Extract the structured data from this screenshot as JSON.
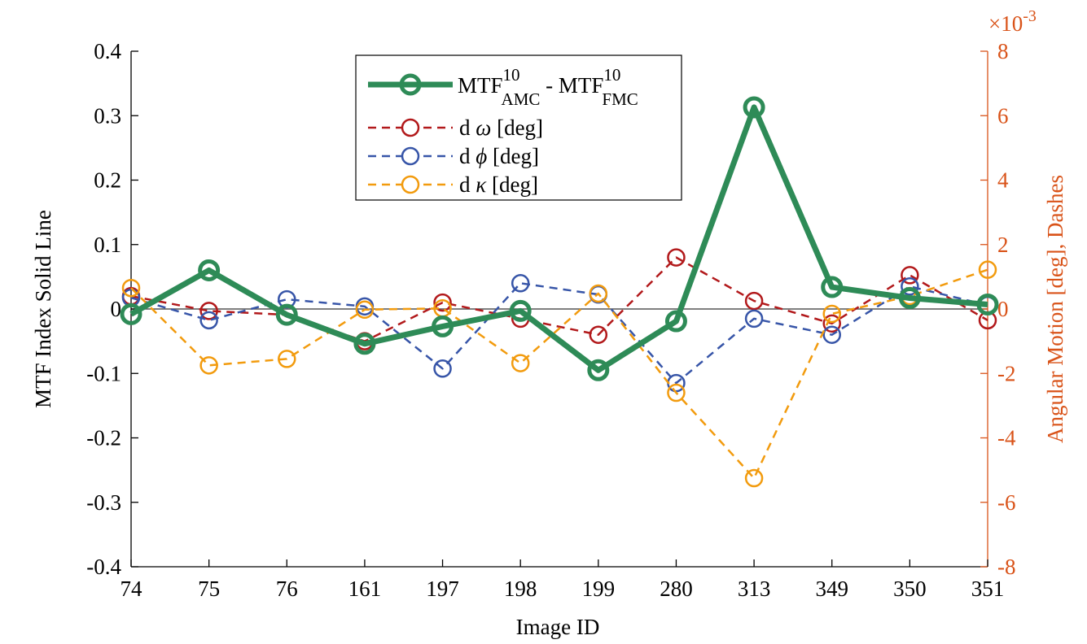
{
  "chart_data": {
    "type": "line",
    "categories": [
      "74",
      "75",
      "76",
      "161",
      "197",
      "198",
      "199",
      "280",
      "313",
      "349",
      "350",
      "351"
    ],
    "xlabel": "Image ID",
    "ylabel_left": "MTF Index Solid Line",
    "ylabel_right": "Angular Motion [deg], Dashes",
    "ylim_left": [
      -0.4,
      0.4
    ],
    "yticks_left": [
      "-0.4",
      "-0.3",
      "-0.2",
      "-0.1",
      "0",
      "0.1",
      "0.2",
      "0.3",
      "0.4"
    ],
    "ylim_right": [
      -8,
      8
    ],
    "yticks_right": [
      "-8",
      "-6",
      "-4",
      "-2",
      "0",
      "2",
      "4",
      "6",
      "8"
    ],
    "right_axis_exponent_base": "×10",
    "right_axis_exponent_power": "-3",
    "zero_line": true,
    "series": [
      {
        "axis": "left",
        "style": "solid",
        "color": "#2e8b57",
        "legend_main": "MTF",
        "legend_sup1": "10",
        "legend_sub1": "AMC",
        "legend_mid": " - MTF",
        "legend_sup2": "10",
        "legend_sub2": "FMC",
        "values": [
          -0.008,
          0.06,
          -0.009,
          -0.054,
          -0.027,
          -0.003,
          -0.095,
          -0.019,
          0.313,
          0.034,
          0.017,
          0.007
        ]
      },
      {
        "axis": "right",
        "style": "dashed",
        "color": "#b2191b",
        "legend_prefix": "d ",
        "legend_symbol": "ω",
        "legend_suffix": " [deg]",
        "values": [
          0.4,
          -0.06,
          -0.18,
          -1.0,
          0.2,
          -0.3,
          -0.8,
          1.6,
          0.25,
          -0.45,
          1.05,
          -0.35
        ]
      },
      {
        "axis": "right",
        "style": "dashed",
        "color": "#3755a8",
        "legend_prefix": "d ",
        "legend_symbol": "ϕ",
        "legend_suffix": " [deg]",
        "values": [
          0.35,
          -0.35,
          0.3,
          0.08,
          -1.85,
          0.8,
          0.45,
          -2.3,
          -0.3,
          -0.8,
          0.7,
          0.12
        ]
      },
      {
        "axis": "right",
        "style": "dashed",
        "color": "#f29b0e",
        "legend_prefix": "d ",
        "legend_symbol": "κ",
        "legend_suffix": " [deg]",
        "values": [
          0.65,
          -1.75,
          -1.55,
          -0.02,
          0.02,
          -1.68,
          0.48,
          -2.6,
          -5.25,
          -0.15,
          0.4,
          1.22
        ]
      }
    ]
  }
}
